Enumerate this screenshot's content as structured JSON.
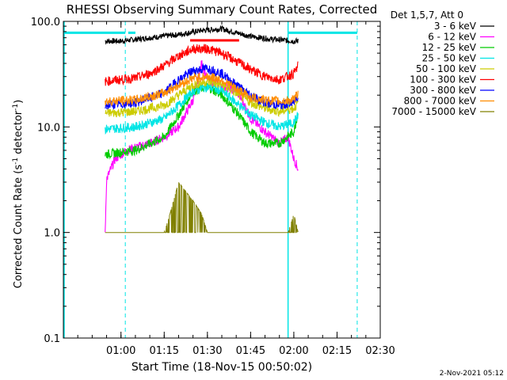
{
  "chart_data": {
    "type": "line",
    "title": "RHESSI Observing Summary Count Rates, Corrected",
    "xlabel": "Start Time (18-Nov-15 00:50:02)",
    "ylabel_main": "Corrected Count Rate (s",
    "ylabel_sup1": "-1",
    "ylabel_mid": " detector",
    "ylabel_sup2": "-1",
    "ylabel_end": ")",
    "yscale": "log",
    "ylim": [
      0.1,
      100.0
    ],
    "xlim_minutes": [
      -10,
      100
    ],
    "ytick_labels": [
      "100.0",
      "10.0",
      "1.0",
      "0.1"
    ],
    "ytick_values": [
      100.0,
      10.0,
      1.0,
      0.1
    ],
    "xtick_labels": [
      "01:00",
      "01:15",
      "01:30",
      "01:45",
      "02:00",
      "02:15",
      "02:30"
    ],
    "xtick_minutes": [
      10,
      25,
      40,
      55,
      70,
      85,
      100
    ],
    "legend_title": "Det 1,5,7, Att 0",
    "legend_position": "right-outside",
    "timestamp": "2-Nov-2021 05:12",
    "axis_color": "#000000",
    "vline_color": "#00e5e5",
    "vlines_solid_minutes": [
      -10,
      68
    ],
    "vlines_dashed_minutes": [
      11.5,
      92
    ],
    "cyan_bars": [
      {
        "from": -10,
        "to": 11.5,
        "y": 78
      },
      {
        "from": 12.5,
        "to": 15,
        "y": 78
      },
      {
        "from": 68,
        "to": 92,
        "y": 78
      }
    ],
    "data_window_minutes": [
      4.5,
      71.5
    ],
    "series": [
      {
        "name": "3 - 6 keV",
        "color": "#000000",
        "points": [
          [
            4.5,
            65
          ],
          [
            10,
            65
          ],
          [
            20,
            70
          ],
          [
            30,
            75
          ],
          [
            38,
            82
          ],
          [
            45,
            85
          ],
          [
            55,
            72
          ],
          [
            62,
            68
          ],
          [
            70,
            65
          ],
          [
            71.5,
            65
          ]
        ]
      },
      {
        "name": "6 - 12 keV",
        "color": "#ff00ff",
        "points": [
          [
            4.5,
            1.0
          ],
          [
            5,
            3.2
          ],
          [
            8,
            5
          ],
          [
            12,
            6
          ],
          [
            20,
            7
          ],
          [
            25,
            8
          ],
          [
            30,
            10
          ],
          [
            35,
            18
          ],
          [
            38,
            40
          ],
          [
            40,
            28
          ],
          [
            45,
            25
          ],
          [
            50,
            22
          ],
          [
            52,
            18
          ],
          [
            55,
            12
          ],
          [
            60,
            9
          ],
          [
            65,
            7
          ],
          [
            68,
            8
          ],
          [
            70,
            5
          ],
          [
            71.5,
            4
          ]
        ]
      },
      {
        "name": "12 - 25 keV",
        "color": "#00cc00",
        "points": [
          [
            4.5,
            5.5
          ],
          [
            15,
            6
          ],
          [
            25,
            8
          ],
          [
            30,
            13
          ],
          [
            35,
            22
          ],
          [
            40,
            24
          ],
          [
            45,
            20
          ],
          [
            50,
            14
          ],
          [
            55,
            9
          ],
          [
            60,
            7
          ],
          [
            65,
            7
          ],
          [
            70,
            9
          ],
          [
            71.5,
            14
          ]
        ]
      },
      {
        "name": "25 - 50 keV",
        "color": "#00e5e5",
        "points": [
          [
            4.5,
            9.5
          ],
          [
            15,
            10
          ],
          [
            25,
            12
          ],
          [
            30,
            16
          ],
          [
            35,
            22
          ],
          [
            40,
            24
          ],
          [
            45,
            22
          ],
          [
            50,
            17
          ],
          [
            55,
            13
          ],
          [
            60,
            11
          ],
          [
            65,
            10
          ],
          [
            70,
            11
          ],
          [
            71.5,
            13
          ]
        ]
      },
      {
        "name": "50 - 100 keV",
        "color": "#cccc00",
        "points": [
          [
            4.5,
            13.5
          ],
          [
            15,
            14
          ],
          [
            25,
            16
          ],
          [
            30,
            20
          ],
          [
            35,
            25
          ],
          [
            40,
            27
          ],
          [
            45,
            25
          ],
          [
            50,
            21
          ],
          [
            55,
            17
          ],
          [
            60,
            15
          ],
          [
            65,
            14
          ],
          [
            70,
            15
          ],
          [
            71.5,
            17
          ]
        ]
      },
      {
        "name": "100 - 300 keV",
        "color": "#ff0000",
        "points": [
          [
            4.5,
            27
          ],
          [
            15,
            29
          ],
          [
            20,
            32
          ],
          [
            25,
            38
          ],
          [
            30,
            47
          ],
          [
            35,
            55
          ],
          [
            40,
            55
          ],
          [
            45,
            50
          ],
          [
            50,
            42
          ],
          [
            55,
            35
          ],
          [
            60,
            30
          ],
          [
            65,
            28
          ],
          [
            70,
            32
          ],
          [
            71.5,
            38
          ]
        ]
      },
      {
        "name": "300 - 800 keV",
        "color": "#0000ff",
        "points": [
          [
            4.5,
            16
          ],
          [
            15,
            17
          ],
          [
            25,
            21
          ],
          [
            30,
            28
          ],
          [
            35,
            34
          ],
          [
            40,
            36
          ],
          [
            45,
            32
          ],
          [
            50,
            25
          ],
          [
            55,
            20
          ],
          [
            60,
            17
          ],
          [
            65,
            16
          ],
          [
            70,
            17
          ],
          [
            71.5,
            20
          ]
        ]
      },
      {
        "name": "800 - 7000 keV",
        "color": "#ff8c00",
        "points": [
          [
            4.5,
            17.5
          ],
          [
            15,
            18
          ],
          [
            25,
            21
          ],
          [
            30,
            25
          ],
          [
            35,
            29
          ],
          [
            40,
            30
          ],
          [
            45,
            28
          ],
          [
            50,
            23
          ],
          [
            55,
            19
          ],
          [
            60,
            18
          ],
          [
            65,
            17.5
          ],
          [
            70,
            18
          ],
          [
            71.5,
            21
          ]
        ]
      },
      {
        "name": "7000 - 15000 keV",
        "color": "#808000",
        "points": [
          [
            4.5,
            1.0
          ],
          [
            20,
            1.0
          ],
          [
            25,
            1.0
          ],
          [
            27,
            1.5
          ],
          [
            30,
            3.0
          ],
          [
            35,
            2.0
          ],
          [
            38,
            1.5
          ],
          [
            40,
            1.0
          ],
          [
            50,
            1.0
          ],
          [
            60,
            1.0
          ],
          [
            68,
            1.0
          ],
          [
            70,
            1.5
          ],
          [
            71.5,
            1.0
          ]
        ]
      }
    ],
    "flat_markers": [
      {
        "color": "#ff0000",
        "from": 34,
        "to": 51,
        "y": 66
      }
    ]
  }
}
